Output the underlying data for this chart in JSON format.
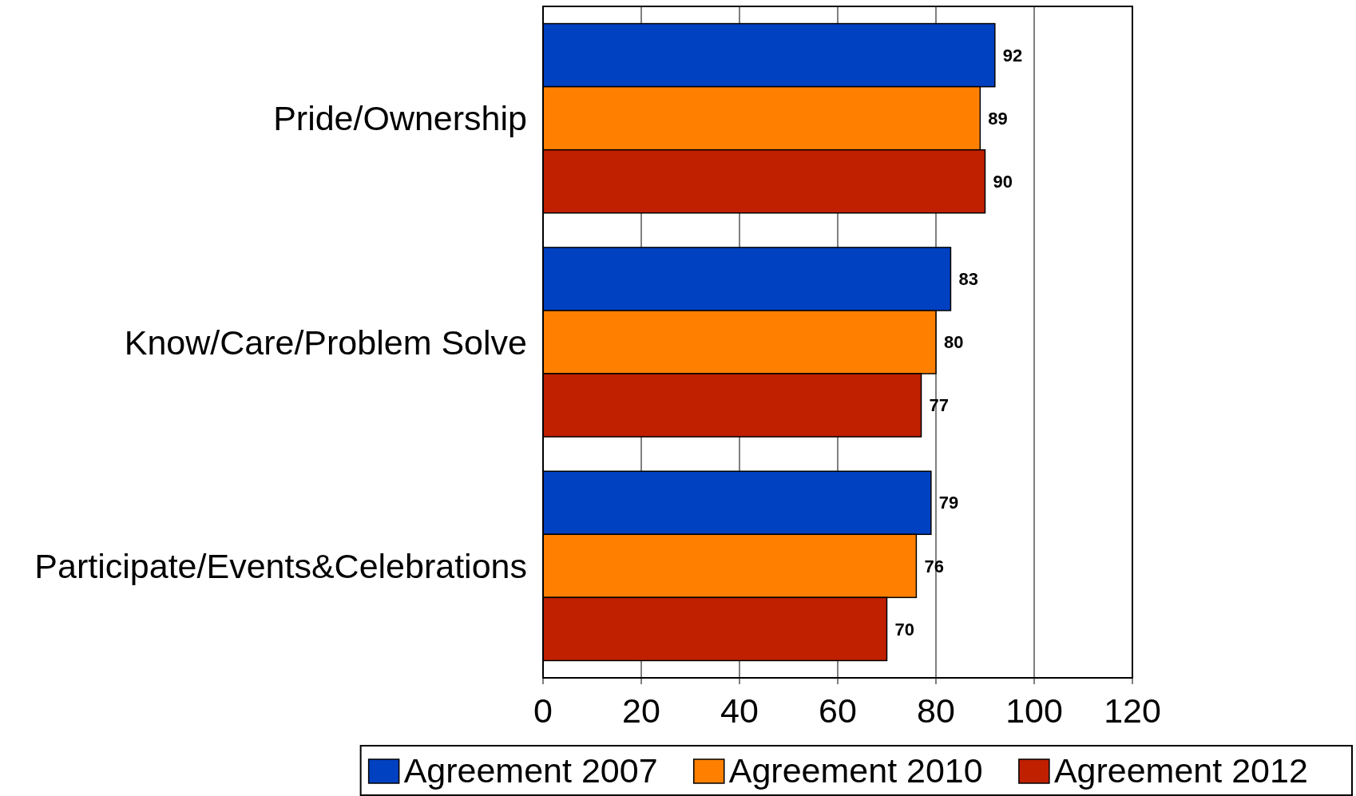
{
  "chart_data": {
    "type": "bar",
    "orientation": "horizontal",
    "categories": [
      "Pride/Ownership",
      "Know/Care/Problem Solve",
      "Participate/Events&Celebrations"
    ],
    "series": [
      {
        "name": "Agreement 2007",
        "color": "#0041c2",
        "values": [
          92,
          83,
          79
        ]
      },
      {
        "name": "Agreement 2010",
        "color": "#ff8000",
        "values": [
          89,
          80,
          76
        ]
      },
      {
        "name": "Agreement 2012",
        "color": "#c02000",
        "values": [
          90,
          77,
          70
        ]
      }
    ],
    "xlim": [
      0,
      120
    ],
    "xticks": [
      0,
      20,
      40,
      60,
      80,
      100,
      120
    ],
    "grid": "x",
    "data_labels": true,
    "legend": "bottom"
  }
}
